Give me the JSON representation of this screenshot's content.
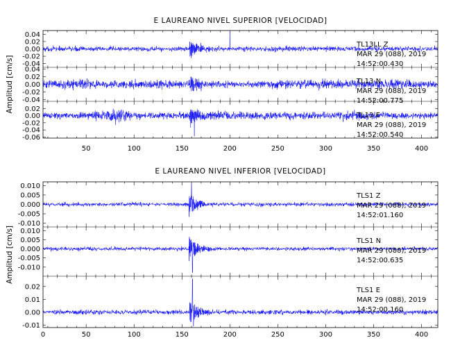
{
  "chart_data": [
    {
      "type": "line",
      "title": "E LAUREANO NIVEL SUPERIOR [VELOCIDAD]",
      "ylabel": "Amplitud [cm/s]",
      "xlim": [
        5,
        417
      ],
      "xticks": [
        50,
        100,
        150,
        200,
        250,
        300,
        350,
        400
      ],
      "trace_color": "#0000ff",
      "panels": [
        {
          "ylim": [
            -0.05,
            0.05
          ],
          "yticks": [
            0.04,
            0.02,
            0.0,
            -0.02,
            -0.04
          ],
          "ytick_labels": [
            "0.04",
            "0.02",
            "0.00",
            "-0.02",
            "-0.04"
          ],
          "ann_channel": "TL13LL Z",
          "ann_date": "MAR 29 (088), 2019",
          "ann_time": "14:52:00.430",
          "noise": 0.0045,
          "peak": 0.032,
          "onset": 158,
          "spikes": [
            [
              200,
              0.05
            ]
          ],
          "swells": []
        },
        {
          "ylim": [
            -0.045,
            0.045
          ],
          "yticks": [
            0.04,
            0.02,
            0.0,
            -0.02,
            -0.04
          ],
          "ytick_labels": [
            "0.04",
            "0.02",
            "0.00",
            "-0.02",
            "-0.04"
          ],
          "ann_channel": "TL13 N",
          "ann_date": "MAR 29 (088), 2019",
          "ann_time": "14:52:00.775",
          "noise": 0.006,
          "peak": 0.03,
          "onset": 158,
          "spikes": [],
          "swells": [
            [
              35,
              25,
              1.4
            ],
            [
              120,
              30,
              1.3
            ],
            [
              300,
              50,
              1.4
            ],
            [
              380,
              30,
              1.3
            ]
          ]
        },
        {
          "ylim": [
            -0.063,
            0.04
          ],
          "yticks": [
            0.02,
            0.0,
            -0.02,
            -0.04,
            -0.06
          ],
          "ytick_labels": [
            "0.02",
            "0.00",
            "-0.02",
            "-0.04",
            "-0.06"
          ],
          "ann_channel": "TL13 E",
          "ann_date": "MAR 29 (088), 2019",
          "ann_time": "14:52:00.540",
          "noise": 0.006,
          "peak": 0.03,
          "onset": 158,
          "spikes": [
            [
              163,
              -0.058
            ]
          ],
          "swells": [
            [
              80,
              18,
              2.2
            ],
            [
              185,
              40,
              1.3
            ],
            [
              250,
              40,
              1.2
            ],
            [
              330,
              25,
              1.4
            ]
          ]
        }
      ]
    },
    {
      "type": "line",
      "title": "E LAUREANO NIVEL INFERIOR [VELOCIDAD]",
      "ylabel": "Amplitud [cm/s]",
      "xlim": [
        5,
        417
      ],
      "xticks": [
        0,
        50,
        100,
        150,
        200,
        250,
        300,
        350,
        400
      ],
      "trace_color": "#0000ff",
      "panels": [
        {
          "ylim": [
            -0.012,
            0.012
          ],
          "yticks": [
            0.01,
            0.005,
            0.0,
            -0.005,
            -0.01
          ],
          "ytick_labels": [
            "0.010",
            "0.005",
            "0.000",
            "-0.005",
            "-0.010"
          ],
          "ann_channel": "TLS1 Z",
          "ann_date": "MAR 29 (088), 2019",
          "ann_time": "14:52:01.160",
          "noise": 0.0007,
          "peak": 0.0075,
          "onset": 157,
          "spikes": [
            [
              160,
              0.011
            ]
          ],
          "swells": []
        },
        {
          "ylim": [
            -0.015,
            0.012
          ],
          "yticks": [
            0.01,
            0.005,
            0.0,
            -0.005,
            -0.01
          ],
          "ytick_labels": [
            "0.010",
            "0.005",
            "0.000",
            "-0.005",
            "-0.010"
          ],
          "ann_channel": "TLS1 N",
          "ann_date": "MAR 29 (088), 2019",
          "ann_time": "14:52:00.635",
          "noise": 0.0007,
          "peak": 0.008,
          "onset": 157,
          "spikes": [
            [
              161,
              -0.013
            ]
          ],
          "swells": []
        },
        {
          "ylim": [
            -0.012,
            0.028
          ],
          "yticks": [
            0.02,
            0.01,
            0.0,
            -0.01
          ],
          "ytick_labels": [
            "0.02",
            "0.01",
            "0.00",
            "-0.01"
          ],
          "ann_channel": "TLS1 E",
          "ann_date": "MAR 29 (088), 2019",
          "ann_time": "14:52:00.160",
          "noise": 0.0012,
          "peak": 0.011,
          "onset": 158,
          "spikes": [
            [
              161,
              0.026
            ],
            [
              162,
              -0.011
            ]
          ],
          "swells": []
        }
      ]
    }
  ]
}
